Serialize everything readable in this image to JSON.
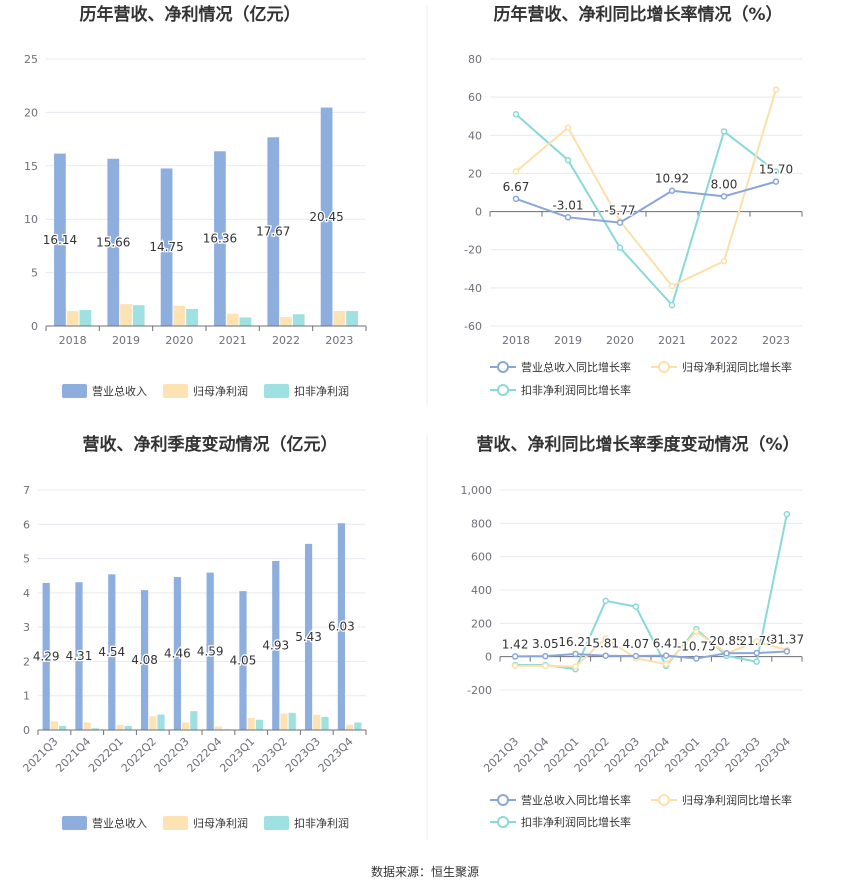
{
  "colors": {
    "revenue": "#8eaede",
    "netprofit": "#fde3b4",
    "deducted": "#9fe0e0",
    "revenue_line": "#8aa6d8",
    "netprofit_line": "#fde0a8",
    "deducted_line": "#8ad9d9",
    "grid": "#e6e9f0",
    "axis": "#6e7079"
  },
  "source": "数据来源：恒生聚源",
  "chart_data": [
    {
      "id": "annual_bar",
      "type": "bar",
      "title": "历年营收、净利情况（亿元）",
      "categories": [
        "2018",
        "2019",
        "2020",
        "2021",
        "2022",
        "2023"
      ],
      "ylim": [
        0,
        25
      ],
      "yticks": [
        0,
        5,
        10,
        15,
        20,
        25
      ],
      "grid": true,
      "legend_position": "bottom",
      "series": [
        {
          "name": "营业总收入",
          "values": [
            16.14,
            15.66,
            14.75,
            16.36,
            17.67,
            20.45
          ],
          "labels": [
            "16.14",
            "15.66",
            "14.75",
            "16.36",
            "17.67",
            "20.45"
          ]
        },
        {
          "name": "归母净利润",
          "values": [
            1.4,
            2.05,
            1.9,
            1.15,
            0.85,
            1.4
          ]
        },
        {
          "name": "扣非净利润",
          "values": [
            1.5,
            1.95,
            1.6,
            0.8,
            1.1,
            1.4
          ]
        }
      ]
    },
    {
      "id": "annual_line",
      "type": "line",
      "title": "历年营收、净利同比增长率情况（%）",
      "categories": [
        "2018",
        "2019",
        "2020",
        "2021",
        "2022",
        "2023"
      ],
      "ylim": [
        -60,
        80
      ],
      "yticks": [
        -60,
        -40,
        -20,
        0,
        20,
        40,
        60,
        80
      ],
      "grid": true,
      "legend_position": "bottom",
      "series": [
        {
          "name": "营业总收入同比增长率",
          "values": [
            6.67,
            -3.01,
            -5.77,
            10.92,
            8.0,
            15.7
          ],
          "labels": [
            "6.67",
            "-3.01",
            "-5.77",
            "10.92",
            "8.00",
            "15.70"
          ]
        },
        {
          "name": "归母净利润同比增长率",
          "values": [
            21,
            44,
            -5,
            -39,
            -26,
            64
          ]
        },
        {
          "name": "扣非净利润同比增长率",
          "values": [
            51,
            27,
            -19,
            -49,
            42,
            21
          ]
        }
      ]
    },
    {
      "id": "quarter_bar",
      "type": "bar",
      "title": "营收、净利季度变动情况（亿元）",
      "categories": [
        "2021Q3",
        "2021Q4",
        "2022Q1",
        "2022Q2",
        "2022Q3",
        "2022Q4",
        "2023Q1",
        "2023Q2",
        "2023Q3",
        "2023Q4"
      ],
      "ylim": [
        0,
        7
      ],
      "yticks": [
        0,
        1,
        2,
        3,
        4,
        5,
        6,
        7
      ],
      "grid": true,
      "legend_position": "bottom",
      "series": [
        {
          "name": "营业总收入",
          "values": [
            4.29,
            4.31,
            4.54,
            4.08,
            4.46,
            4.59,
            4.05,
            4.93,
            5.43,
            6.03
          ],
          "labels": [
            "4.29",
            "4.31",
            "4.54",
            "4.08",
            "4.46",
            "4.59",
            "4.05",
            "4.93",
            "5.43",
            "6.03"
          ]
        },
        {
          "name": "归母净利润",
          "values": [
            0.25,
            0.22,
            0.15,
            0.4,
            0.22,
            0.1,
            0.35,
            0.48,
            0.44,
            0.15
          ]
        },
        {
          "name": "扣非净利润",
          "values": [
            0.12,
            0.05,
            0.12,
            0.45,
            0.55,
            0.02,
            0.3,
            0.5,
            0.38,
            0.22
          ]
        }
      ]
    },
    {
      "id": "quarter_line",
      "type": "line",
      "title": "营收、净利同比增长率季度变动情况（%）",
      "categories": [
        "2021Q3",
        "2021Q4",
        "2022Q1",
        "2022Q2",
        "2022Q3",
        "2022Q4",
        "2023Q1",
        "2023Q2",
        "2023Q3",
        "2023Q4"
      ],
      "ylim": [
        -200,
        1000
      ],
      "yticks": [
        -200,
        0,
        200,
        400,
        600,
        800,
        1000
      ],
      "ytick_labels": [
        "-200",
        "0",
        "200",
        "400",
        "600",
        "800",
        "1,000"
      ],
      "grid": true,
      "legend_position": "bottom",
      "series": [
        {
          "name": "营业总收入同比增长率",
          "values": [
            1.42,
            3.05,
            16.21,
            5.81,
            4.07,
            6.41,
            -10.75,
            20.85,
            21.79,
            31.37
          ],
          "labels": [
            "1.42",
            "3.05",
            "16.21",
            "5.81",
            "4.07",
            "6.41",
            "-10.75",
            "20.85",
            "21.79",
            "31.37"
          ]
        },
        {
          "name": "归母净利润同比增长率",
          "values": [
            -55,
            -55,
            -60,
            110,
            -10,
            -45,
            150,
            20,
            90,
            40
          ]
        },
        {
          "name": "扣非净利润同比增长率",
          "values": [
            -50,
            -50,
            -75,
            335,
            300,
            -55,
            165,
            5,
            -30,
            855
          ]
        }
      ]
    }
  ]
}
